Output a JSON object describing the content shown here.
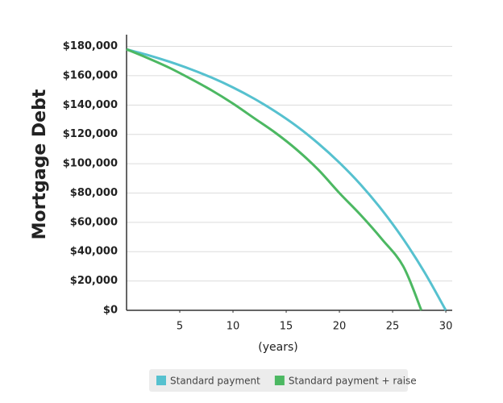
{
  "chart_data": {
    "type": "line",
    "y_label": "Mortgage Debt",
    "x_label": "(years)",
    "series": [
      {
        "name": "Standard payment",
        "color": "#56c1cf",
        "x": [
          0,
          2,
          4,
          6,
          8,
          10,
          12,
          14,
          16,
          18,
          20,
          22,
          24,
          26,
          28,
          30
        ],
        "values": [
          178000,
          174100,
          169600,
          164500,
          158700,
          152000,
          144300,
          135500,
          125500,
          113900,
          100700,
          85700,
          68400,
          48600,
          25900,
          0
        ]
      },
      {
        "name": "Standard payment + raise",
        "color": "#4cb862",
        "x": [
          0,
          2,
          4,
          6,
          8,
          10,
          12,
          14,
          16,
          18,
          20,
          22,
          24,
          26,
          27.7
        ],
        "values": [
          178000,
          172000,
          165500,
          158000,
          150000,
          141000,
          131000,
          121000,
          109500,
          96000,
          80000,
          65000,
          48500,
          30000,
          0
        ]
      }
    ],
    "xlim": [
      0,
      30.6
    ],
    "xticks": [
      5,
      10,
      15,
      20,
      25,
      30
    ],
    "ylim": [
      0,
      188000
    ],
    "yticks": [
      {
        "value": 0,
        "label": "$0"
      },
      {
        "value": 20000,
        "label": "$20,000"
      },
      {
        "value": 40000,
        "label": "$40,000"
      },
      {
        "value": 60000,
        "label": "$60,000"
      },
      {
        "value": 80000,
        "label": "$80,000"
      },
      {
        "value": 100000,
        "label": "$100,000"
      },
      {
        "value": 120000,
        "label": "$120,000"
      },
      {
        "value": 140000,
        "label": "$140,000"
      },
      {
        "value": 160000,
        "label": "$160,000"
      },
      {
        "value": 180000,
        "label": "$180,000"
      }
    ],
    "grid": true
  }
}
